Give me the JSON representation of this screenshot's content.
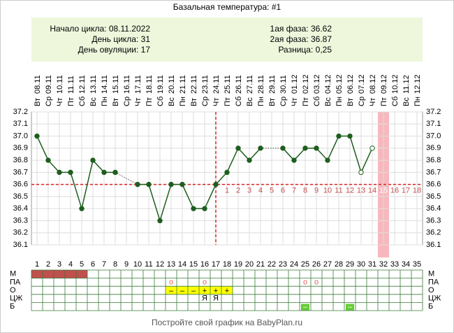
{
  "chart_data": {
    "type": "line",
    "title": "Базальная температура: #1",
    "info_left": [
      "Начало цикла: 08.11.2022",
      "День цикла: 31",
      "День овуляции: 17"
    ],
    "info_right": [
      "1ая фаза: 36.62",
      "2ая фаза: 36.87",
      "Разница: 0,25"
    ],
    "days": [
      1,
      2,
      3,
      4,
      5,
      6,
      7,
      8,
      9,
      10,
      11,
      12,
      13,
      14,
      15,
      16,
      17,
      18,
      19,
      20,
      21,
      22,
      23,
      24,
      25,
      26,
      27,
      28,
      29,
      30,
      31,
      32,
      33,
      34,
      35
    ],
    "weekdays": [
      "Вт",
      "Ср",
      "Чт",
      "Пт",
      "Сб",
      "Вс",
      "Пн",
      "Вт",
      "Ср",
      "Чт",
      "Пт",
      "Сб",
      "Вс",
      "Пн",
      "Вт",
      "Ср",
      "Чт",
      "Пт",
      "Сб",
      "Вс",
      "Пн",
      "Вт",
      "Ср",
      "Чт",
      "Пт",
      "Сб",
      "Вс",
      "Пн",
      "Вт",
      "Ср",
      "Чт",
      "Пт",
      "Сб",
      "Вс",
      "Пн"
    ],
    "categories": [
      "08.11",
      "09.11",
      "10.11",
      "11.11",
      "12.11",
      "13.11",
      "14.11",
      "15.11",
      "16.11",
      "17.11",
      "18.11",
      "19.11",
      "20.11",
      "21.11",
      "22.11",
      "23.11",
      "24.11",
      "25.11",
      "26.11",
      "27.11",
      "28.11",
      "29.11",
      "30.11",
      "01.12",
      "02.12",
      "03.12",
      "04.12",
      "05.12",
      "06.12",
      "07.12",
      "08.12",
      "09.12",
      "10.12",
      "11.12",
      "12.12"
    ],
    "values": [
      37.0,
      36.8,
      36.7,
      36.7,
      36.4,
      36.8,
      36.7,
      36.7,
      null,
      36.6,
      36.6,
      36.3,
      36.6,
      36.6,
      36.4,
      36.4,
      36.6,
      36.7,
      36.9,
      36.8,
      36.9,
      null,
      36.9,
      36.8,
      36.9,
      36.9,
      36.8,
      37.0,
      37.0,
      36.7,
      36.9,
      null,
      null,
      null,
      null
    ],
    "open_days": [
      30,
      31
    ],
    "color": "#1e5e1e",
    "ylim": [
      36.1,
      37.2
    ],
    "yticks": [
      36.1,
      36.2,
      36.3,
      36.4,
      36.5,
      36.6,
      36.7,
      36.8,
      36.9,
      {
        "value": 37,
        "label": "37.0"
      },
      37.1,
      37.2
    ],
    "grid": true,
    "coverline": 36.6,
    "ovulation_day": 17,
    "highlight_day": 32,
    "luteal_days": [
      1,
      2,
      3,
      4,
      5,
      6,
      7,
      8,
      9,
      10,
      11,
      12,
      13,
      14,
      15,
      16,
      17,
      18
    ],
    "rows": [
      {
        "label": "М",
        "color": "#c0504d",
        "entries": [
          {
            "day": 1
          },
          {
            "day": 2
          },
          {
            "day": 3
          },
          {
            "day": 4
          },
          {
            "day": 5
          }
        ]
      },
      {
        "label": "ПА",
        "color": "#e06060",
        "entries": [
          {
            "day": 13,
            "text": "o"
          },
          {
            "day": 16,
            "text": "o"
          },
          {
            "day": 25,
            "text": "o"
          },
          {
            "day": 26,
            "text": "o"
          }
        ]
      },
      {
        "label": "О",
        "color": "#ffff00",
        "entries": [
          {
            "day": 13,
            "text": "–"
          },
          {
            "day": 14,
            "text": "–"
          },
          {
            "day": 15,
            "text": "–"
          },
          {
            "day": 16,
            "text": "+"
          },
          {
            "day": 17,
            "text": "+"
          },
          {
            "day": 18,
            "text": "+"
          }
        ]
      },
      {
        "label": "ЦЖ",
        "color": "#000000",
        "entries": [
          {
            "day": 16,
            "text": "Я"
          },
          {
            "day": 17,
            "text": "Я"
          }
        ]
      },
      {
        "label": "Б",
        "color": "#66cc33",
        "entries": [
          {
            "day": 25,
            "text": "–"
          },
          {
            "day": 29,
            "text": "–"
          }
        ]
      }
    ],
    "footer": "Постройте свой график на BabyPlan.ru"
  }
}
